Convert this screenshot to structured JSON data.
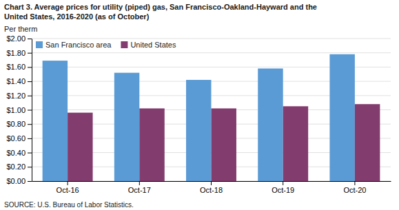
{
  "chart_data": {
    "type": "bar",
    "title": [
      "Chart 3. Average prices for utility (piped) gas, San Francisco-Oakland-Hayward and the",
      "United States, 2016-2020  (as of October)"
    ],
    "y_label": "Per therm",
    "source": "SOURCE: U.S. Bureau of Labor Statistics.",
    "categories": [
      "Oct-16",
      "Oct-17",
      "Oct-18",
      "Oct-19",
      "Oct-20"
    ],
    "series": [
      {
        "name": "San Francisco area",
        "color": "#5b9bd5",
        "values": [
          1.69,
          1.52,
          1.42,
          1.58,
          1.78
        ]
      },
      {
        "name": "United States",
        "color": "#833c6e",
        "values": [
          0.96,
          1.02,
          1.02,
          1.05,
          1.08
        ]
      }
    ],
    "ylim": [
      0,
      2.0
    ],
    "yticks": [
      {
        "value": 0.0,
        "label": "$0.00"
      },
      {
        "value": 0.2,
        "label": "$0.20"
      },
      {
        "value": 0.4,
        "label": "$0.40"
      },
      {
        "value": 0.6,
        "label": "$0.60"
      },
      {
        "value": 0.8,
        "label": "$0.80"
      },
      {
        "value": 1.0,
        "label": "$1.00"
      },
      {
        "value": 1.2,
        "label": "$1.20"
      },
      {
        "value": 1.4,
        "label": "$1.40"
      },
      {
        "value": 1.6,
        "label": "$1.60"
      },
      {
        "value": 1.8,
        "label": "$1.80"
      },
      {
        "value": 2.0,
        "label": "$2.00"
      }
    ],
    "grid": true,
    "legend": "top-left"
  }
}
